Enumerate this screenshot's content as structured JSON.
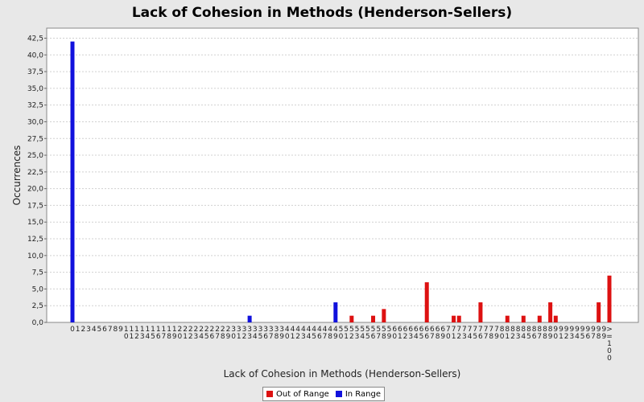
{
  "chart_data": {
    "type": "bar",
    "title": "Lack of Cohesion in Methods (Henderson-Sellers)",
    "xlabel": "Lack of Cohesion in Methods (Henderson-Sellers)",
    "ylabel": "Occurrences",
    "ylim": [
      0,
      44
    ],
    "yticks": [
      "0,0",
      "2,5",
      "5,0",
      "7,5",
      "10,0",
      "12,5",
      "15,0",
      "17,5",
      "20,0",
      "22,5",
      "25,0",
      "27,5",
      "30,0",
      "32,5",
      "35,0",
      "37,5",
      "40,0",
      "42,5"
    ],
    "grid": true,
    "legend_position": "bottom-center",
    "categories": [
      "0",
      "1",
      "2",
      "3",
      "4",
      "5",
      "6",
      "7",
      "8",
      "9",
      "10",
      "11",
      "12",
      "13",
      "14",
      "15",
      "16",
      "17",
      "18",
      "19",
      "20",
      "21",
      "22",
      "23",
      "24",
      "25",
      "26",
      "27",
      "28",
      "29",
      "30",
      "31",
      "32",
      "33",
      "34",
      "35",
      "36",
      "37",
      "38",
      "39",
      "40",
      "41",
      "42",
      "43",
      "44",
      "45",
      "46",
      "47",
      "48",
      "49",
      "50",
      "51",
      "52",
      "53",
      "54",
      "55",
      "56",
      "57",
      "58",
      "59",
      "60",
      "61",
      "62",
      "63",
      "64",
      "65",
      "66",
      "67",
      "68",
      "69",
      "70",
      "71",
      "72",
      "73",
      "74",
      "75",
      "76",
      "77",
      "78",
      "79",
      "80",
      "81",
      "82",
      "83",
      "84",
      "85",
      "86",
      "87",
      "88",
      "89",
      "90",
      "91",
      "92",
      "93",
      "94",
      "95",
      "96",
      "97",
      "98",
      "99",
      ">=100"
    ],
    "series": [
      {
        "name": "Out of Range",
        "color": "#dd1111",
        "values": [
          0,
          0,
          0,
          0,
          0,
          0,
          0,
          0,
          0,
          0,
          0,
          0,
          0,
          0,
          0,
          0,
          0,
          0,
          0,
          0,
          0,
          0,
          0,
          0,
          0,
          0,
          0,
          0,
          0,
          0,
          0,
          0,
          0,
          0,
          0,
          0,
          0,
          0,
          0,
          0,
          0,
          0,
          0,
          0,
          0,
          0,
          0,
          0,
          0,
          0,
          0,
          0,
          1,
          0,
          0,
          0,
          1,
          0,
          2,
          0,
          0,
          0,
          0,
          0,
          0,
          0,
          6,
          0,
          0,
          0,
          0,
          1,
          1,
          0,
          0,
          0,
          3,
          0,
          0,
          0,
          0,
          1,
          0,
          0,
          1,
          0,
          0,
          1,
          0,
          3,
          1,
          0,
          0,
          0,
          0,
          0,
          0,
          0,
          3,
          0,
          7
        ]
      },
      {
        "name": "In Range",
        "color": "#1111dd",
        "values": [
          42,
          0,
          0,
          0,
          0,
          0,
          0,
          0,
          0,
          0,
          0,
          0,
          0,
          0,
          0,
          0,
          0,
          0,
          0,
          0,
          0,
          0,
          0,
          0,
          0,
          0,
          0,
          0,
          0,
          0,
          0,
          0,
          0,
          1,
          0,
          0,
          0,
          0,
          0,
          0,
          0,
          0,
          0,
          0,
          0,
          0,
          0,
          0,
          0,
          3,
          0,
          0,
          0,
          0,
          0,
          0,
          0,
          0,
          0,
          0,
          0,
          0,
          0,
          0,
          0,
          0,
          0,
          0,
          0,
          0,
          0,
          0,
          0,
          0,
          0,
          0,
          0,
          0,
          0,
          0,
          0,
          0,
          0,
          0,
          0,
          0,
          0,
          0,
          0,
          0,
          0,
          0,
          0,
          0,
          0,
          0,
          0,
          0,
          0,
          0,
          0
        ]
      }
    ]
  }
}
